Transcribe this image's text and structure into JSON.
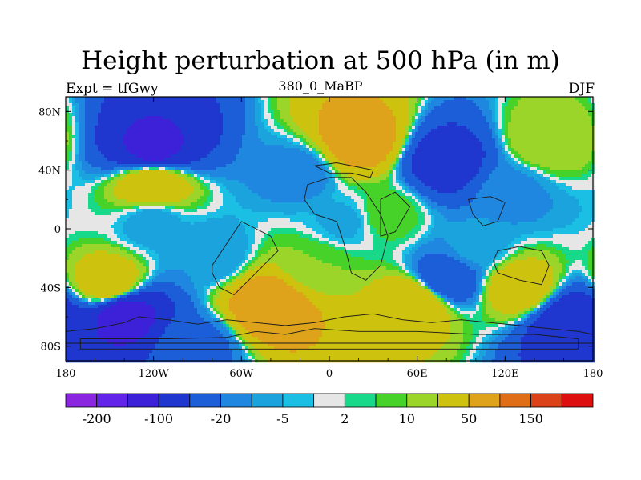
{
  "header": {
    "title": "Height perturbation at 500 hPa (in m)",
    "left_label": "Expt = tfGwy",
    "center_label": "380_0_MaBP",
    "right_label": "DJF"
  },
  "chart_data": {
    "type": "heatmap",
    "title": "Height perturbation at 500 hPa (in m)",
    "subtitle": "380_0_MaBP",
    "left_string": "Expt = tfGwy",
    "right_string": "DJF",
    "projection": "cylindrical equidistant",
    "xlim": [
      -180,
      180
    ],
    "ylim": [
      -90,
      90
    ],
    "x_ticks": [
      -180,
      -120,
      -60,
      0,
      60,
      120,
      180
    ],
    "x_tick_labels": [
      "180",
      "120W",
      "60W",
      "0",
      "60E",
      "120E",
      "180"
    ],
    "y_ticks": [
      80,
      40,
      0,
      -40,
      -80
    ],
    "y_tick_labels": [
      "80N",
      "40N",
      "0",
      "40S",
      "80S"
    ],
    "contour_levels": [
      -200,
      -150,
      -100,
      -50,
      -20,
      -10,
      -5,
      -2,
      2,
      5,
      10,
      20,
      50,
      100,
      150,
      200
    ],
    "colorbar_labels": [
      "-200",
      "-100",
      "-20",
      "-5",
      "2",
      "10",
      "50",
      "150"
    ],
    "colorbar_label_levels": [
      -200,
      -100,
      -20,
      -5,
      2,
      10,
      50,
      150
    ],
    "palette": [
      "#8a25e0",
      "#6224e8",
      "#3c21d8",
      "#1f36cf",
      "#1c5ed8",
      "#2087e1",
      "#1aa3dc",
      "#1bbfe3",
      "#e6e6e6",
      "#18d88a",
      "#47d22a",
      "#9bd52a",
      "#cdc20e",
      "#dea31a",
      "#e06e16",
      "#dc4218",
      "#de0f0f"
    ],
    "field_features": [
      {
        "lon": -120,
        "lat": 55,
        "value": -110
      },
      {
        "lon": -120,
        "lat": 30,
        "value": 45
      },
      {
        "lon": -120,
        "lat": 5,
        "value": -8
      },
      {
        "lon": -150,
        "lat": -38,
        "value": 40
      },
      {
        "lon": -140,
        "lat": -58,
        "value": -120
      },
      {
        "lon": -90,
        "lat": -80,
        "value": -25
      },
      {
        "lon": -80,
        "lat": -18,
        "value": -10
      },
      {
        "lon": -40,
        "lat": -52,
        "value": 80
      },
      {
        "lon": -20,
        "lat": 38,
        "value": -15
      },
      {
        "lon": 20,
        "lat": 60,
        "value": 70
      },
      {
        "lon": 10,
        "lat": 5,
        "value": -6
      },
      {
        "lon": 40,
        "lat": 10,
        "value": 8
      },
      {
        "lon": 80,
        "lat": 45,
        "value": -70
      },
      {
        "lon": 150,
        "lat": 60,
        "value": 20
      },
      {
        "lon": 125,
        "lat": 25,
        "value": -12
      },
      {
        "lon": 60,
        "lat": -50,
        "value": 45
      },
      {
        "lon": 80,
        "lat": -35,
        "value": -40
      },
      {
        "lon": 130,
        "lat": -40,
        "value": 35
      },
      {
        "lon": 165,
        "lat": -65,
        "value": -90
      },
      {
        "lon": -10,
        "lat": -25,
        "value": 10
      },
      {
        "lon": 100,
        "lat": -12,
        "value": -8
      }
    ]
  }
}
